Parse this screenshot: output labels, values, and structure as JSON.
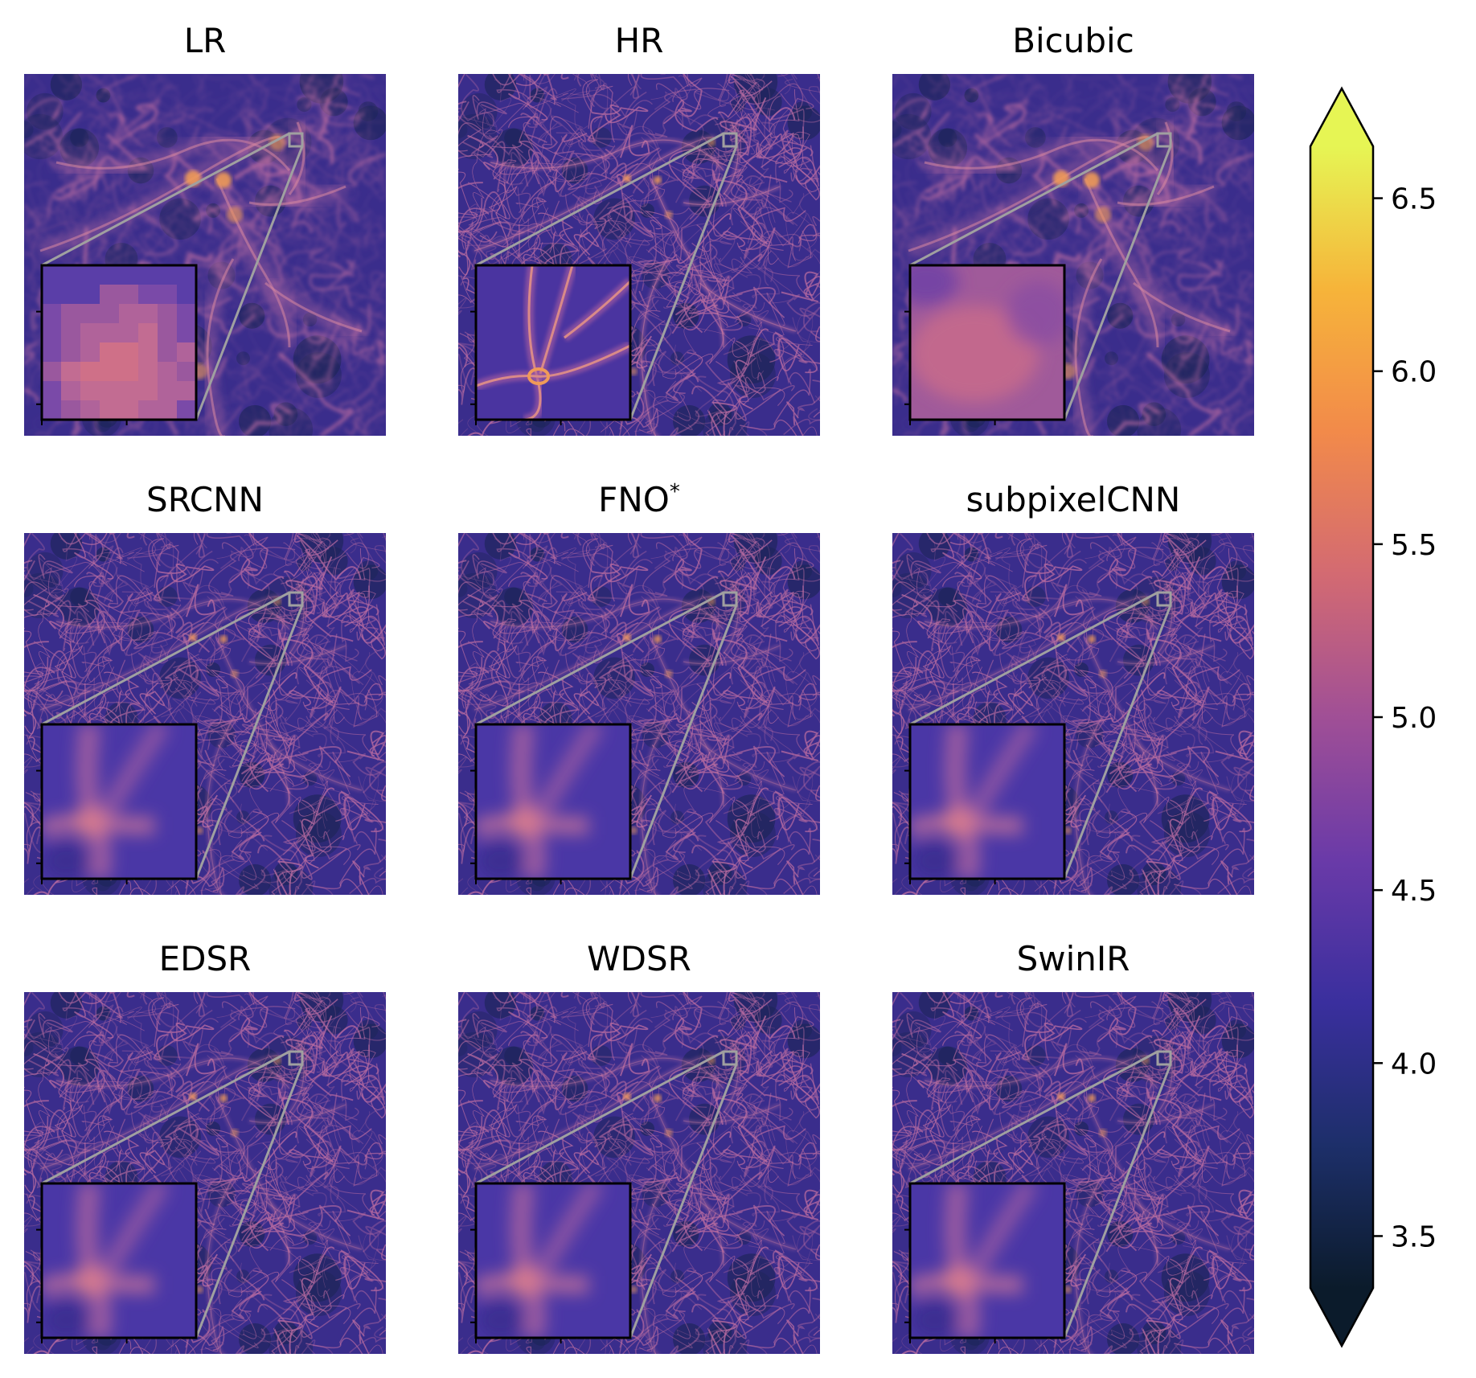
{
  "figure": {
    "panels": [
      {
        "id": "lr",
        "title": "LR",
        "inset_style": "blocky",
        "brightness": 1.0
      },
      {
        "id": "hr",
        "title": "HR",
        "inset_style": "sharp",
        "brightness": 0.85
      },
      {
        "id": "bicubic",
        "title": "Bicubic",
        "inset_style": "smooth",
        "brightness": 1.0
      },
      {
        "id": "srcnn",
        "title": "SRCNN",
        "inset_style": "filament",
        "brightness": 0.6
      },
      {
        "id": "fno",
        "title": "FNO",
        "title_sup": "*",
        "inset_style": "filament",
        "brightness": 0.6
      },
      {
        "id": "subpixelcnn",
        "title": "subpixelCNN",
        "inset_style": "filament",
        "brightness": 0.6
      },
      {
        "id": "edsr",
        "title": "EDSR",
        "inset_style": "filament",
        "brightness": 0.6
      },
      {
        "id": "wdsr",
        "title": "WDSR",
        "inset_style": "filament",
        "brightness": 0.6
      },
      {
        "id": "swinir",
        "title": "SwinIR",
        "inset_style": "filament",
        "brightness": 0.6
      }
    ],
    "colorbar": {
      "colormap": "plasma-like",
      "colors": [
        "#0b1b2b",
        "#1d2f6a",
        "#3a2f9e",
        "#6a3aa8",
        "#a04f96",
        "#d36a72",
        "#f28a4a",
        "#f6b43a",
        "#e6f554"
      ],
      "min": 3.35,
      "max": 6.65,
      "extend": "both",
      "ticks": [
        3.5,
        4.0,
        4.5,
        5.0,
        5.5,
        6.0,
        6.5
      ],
      "tick_labels": [
        "3.5",
        "4.0",
        "4.5",
        "5.0",
        "5.5",
        "6.0",
        "6.5"
      ]
    },
    "colors": {
      "map_base": "#3a2d8c",
      "map_dark": "#1c2458",
      "filament": "#b86aa0",
      "bright": "#f09a58",
      "zoom_line": "#a0a0a0",
      "inset_border": "#000000"
    }
  }
}
